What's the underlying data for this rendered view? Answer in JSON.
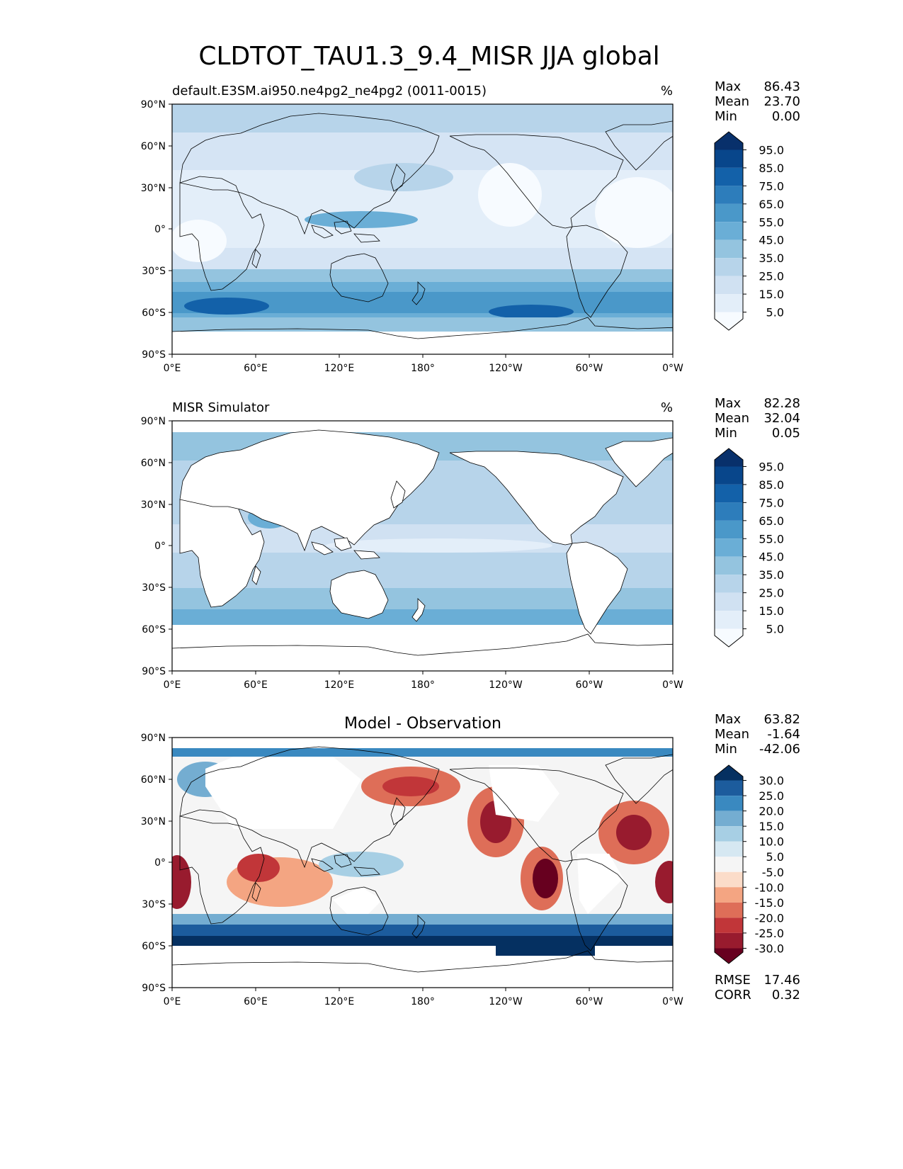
{
  "figure": {
    "title": "CLDTOT_TAU1.3_9.4_MISR JJA global"
  },
  "axes": {
    "lat_ticks": [
      "90°N",
      "60°N",
      "30°N",
      "0°",
      "30°S",
      "60°S",
      "90°S"
    ],
    "lon_ticks": [
      "0°E",
      "60°E",
      "120°E",
      "180°",
      "120°W",
      "60°W",
      "0°W"
    ]
  },
  "panels": [
    {
      "id": "model",
      "left_title": "default.E3SM.ai950.ne4pg2_ne4pg2 (0011-0015)",
      "center_title": "",
      "units": "%",
      "stats": [
        {
          "label": "Max",
          "value": "86.43"
        },
        {
          "label": "Mean",
          "value": "23.70"
        },
        {
          "label": "Min",
          "value": "0.00"
        }
      ],
      "colorbar": {
        "labels": [
          "95.0",
          "85.0",
          "75.0",
          "65.0",
          "55.0",
          "45.0",
          "35.0",
          "25.0",
          "15.0",
          "5.0"
        ],
        "colors": [
          "#08306b",
          "#08468b",
          "#1361a9",
          "#2d7dbb",
          "#4a98c9",
          "#6aaed6",
          "#94c4df",
          "#b7d4ea",
          "#d0e1f2",
          "#e3eef9",
          "#f7fbff"
        ]
      }
    },
    {
      "id": "obs",
      "left_title": "MISR Simulator",
      "center_title": "",
      "units": "%",
      "stats": [
        {
          "label": "Max",
          "value": "82.28"
        },
        {
          "label": "Mean",
          "value": "32.04"
        },
        {
          "label": "Min",
          "value": "0.05"
        }
      ],
      "colorbar": {
        "labels": [
          "95.0",
          "85.0",
          "75.0",
          "65.0",
          "55.0",
          "45.0",
          "35.0",
          "25.0",
          "15.0",
          "5.0"
        ],
        "colors": [
          "#08306b",
          "#08468b",
          "#1361a9",
          "#2d7dbb",
          "#4a98c9",
          "#6aaed6",
          "#94c4df",
          "#b7d4ea",
          "#d0e1f2",
          "#e3eef9",
          "#f7fbff"
        ]
      }
    },
    {
      "id": "diff",
      "left_title": "",
      "center_title": "Model - Observation",
      "units": "",
      "stats": [
        {
          "label": "Max",
          "value": "63.82"
        },
        {
          "label": "Mean",
          "value": "-1.64"
        },
        {
          "label": "Min",
          "value": "-42.06"
        }
      ],
      "colorbar": {
        "labels": [
          "30.0",
          "25.0",
          "20.0",
          "15.0",
          "10.0",
          "5.0",
          "-5.0",
          "-10.0",
          "-15.0",
          "-20.0",
          "-25.0",
          "-30.0"
        ],
        "colors": [
          "#053061",
          "#1c5c9d",
          "#3a89c0",
          "#74add1",
          "#a7cfe4",
          "#d6e8f2",
          "#f5f5f5",
          "#fbdcc9",
          "#f4a582",
          "#de6e58",
          "#c13639",
          "#981b2e",
          "#67001f"
        ]
      },
      "extra_stats": [
        {
          "label": "RMSE",
          "value": "17.46"
        },
        {
          "label": "CORR",
          "value": "0.32"
        }
      ]
    }
  ]
}
